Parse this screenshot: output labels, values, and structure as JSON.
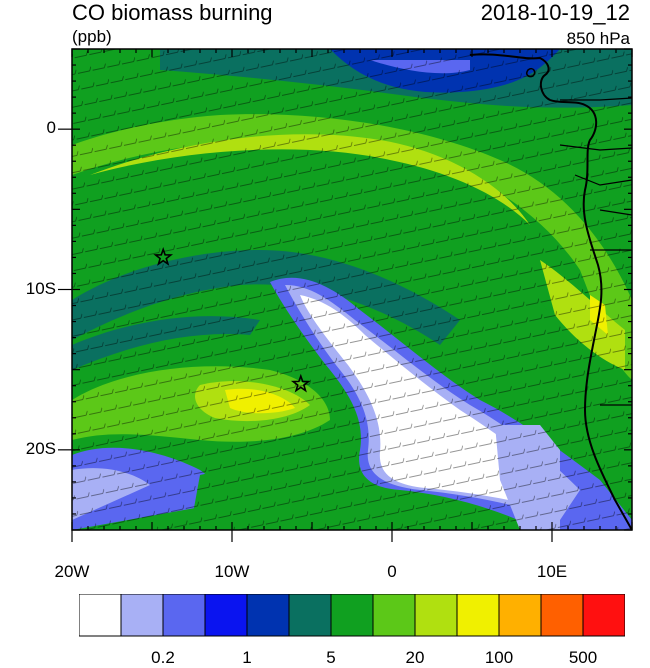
{
  "header": {
    "title": "CO biomass burning",
    "units": "(ppb)",
    "datetime": "2018-10-19_12",
    "level": "850 hPa"
  },
  "map": {
    "lon_range": [
      -20,
      15
    ],
    "lat_range": [
      -25,
      5
    ],
    "y_ticks": [
      {
        "label": "0",
        "lat": 0
      },
      {
        "label": "10S",
        "lat": -10
      },
      {
        "label": "20S",
        "lat": -20
      }
    ],
    "x_ticks": [
      {
        "label": "20W",
        "lon": -20
      },
      {
        "label": "10W",
        "lon": -10
      },
      {
        "label": "0",
        "lon": 0
      },
      {
        "label": "10E",
        "lon": 10
      }
    ],
    "star_markers": [
      {
        "lon": -14.3,
        "lat": -8.0
      },
      {
        "lon": -5.7,
        "lat": -15.9
      }
    ]
  },
  "colorbar": {
    "colors": [
      "#ffffff",
      "#a8b0f5",
      "#5a67f0",
      "#0a14f0",
      "#0033b0",
      "#0a7060",
      "#10a020",
      "#5cc818",
      "#b0e010",
      "#f0f000",
      "#ffb000",
      "#ff6000",
      "#ff1010"
    ],
    "labels": [
      "0.2",
      "1",
      "5",
      "20",
      "100",
      "500"
    ]
  }
}
